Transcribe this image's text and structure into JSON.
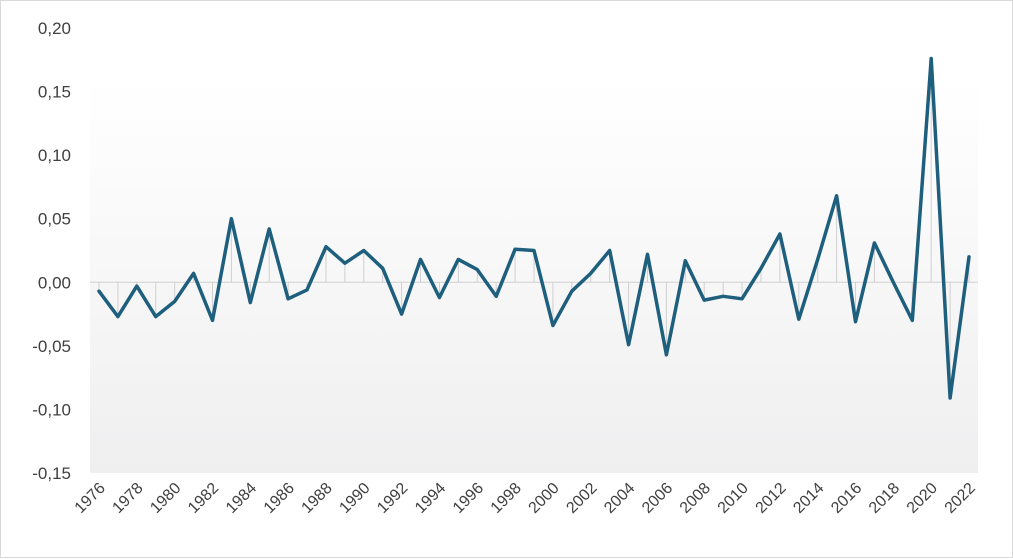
{
  "chart_data": {
    "type": "line",
    "title": "",
    "xlabel": "",
    "ylabel": "",
    "x": [
      1976,
      1977,
      1978,
      1979,
      1980,
      1981,
      1982,
      1983,
      1984,
      1985,
      1986,
      1987,
      1988,
      1989,
      1990,
      1991,
      1992,
      1993,
      1994,
      1995,
      1996,
      1997,
      1998,
      1999,
      2000,
      2001,
      2002,
      2003,
      2004,
      2005,
      2006,
      2007,
      2008,
      2009,
      2010,
      2011,
      2012,
      2013,
      2014,
      2015,
      2016,
      2017,
      2018,
      2019,
      2020,
      2021,
      2022
    ],
    "series": [
      {
        "values": [
          -0.007,
          -0.027,
          -0.003,
          -0.027,
          -0.015,
          0.007,
          -0.03,
          0.05,
          -0.016,
          0.042,
          -0.013,
          -0.006,
          0.028,
          0.015,
          0.025,
          0.011,
          -0.025,
          0.018,
          -0.012,
          0.018,
          0.01,
          -0.011,
          0.026,
          0.025,
          -0.034,
          -0.007,
          0.007,
          0.025,
          -0.049,
          0.022,
          -0.057,
          0.017,
          -0.014,
          -0.011,
          -0.013,
          0.011,
          0.038,
          -0.029,
          0.018,
          0.068,
          -0.031,
          0.031,
          0.0,
          -0.03,
          0.176,
          -0.091,
          0.02
        ]
      }
    ],
    "ylim": [
      -0.15,
      0.2
    ],
    "yticks": [
      "-0,15",
      "-0,10",
      "-0,05",
      "0,00",
      "0,05",
      "0,10",
      "0,15",
      "0,20"
    ],
    "xticks": [
      "1976",
      "1978",
      "1980",
      "1982",
      "1984",
      "1986",
      "1988",
      "1990",
      "1992",
      "1994",
      "1996",
      "1998",
      "2000",
      "2002",
      "2004",
      "2006",
      "2008",
      "2010",
      "2012",
      "2014",
      "2016",
      "2018",
      "2020",
      "2022"
    ],
    "grid": false,
    "line_color": "#1f5f7e",
    "drop_line_color": "#d0d0d0",
    "background_gradient": [
      "#ffffff",
      "#efeff0"
    ]
  }
}
